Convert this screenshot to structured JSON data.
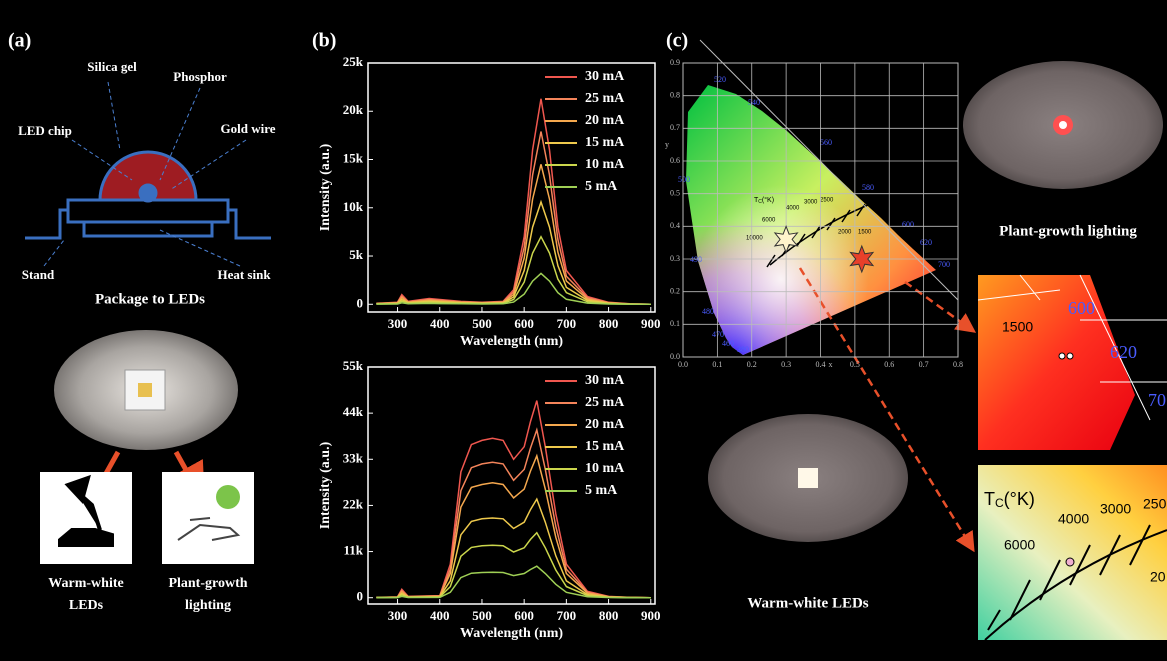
{
  "panel_a": {
    "label": "(a)",
    "parts": [
      "Silica gel",
      "Phosphor",
      "LED chip",
      "Gold wire",
      "Stand",
      "Heat sink"
    ],
    "caption": "Package to LEDs",
    "applications": [
      [
        "Warm-white",
        "LEDs"
      ],
      [
        "Plant-growth",
        "lighting"
      ]
    ]
  },
  "panel_b": {
    "label": "(b)"
  },
  "panel_c": {
    "label": "(c)",
    "photo_captions": [
      "Plant-growth lighting",
      "Warm-white LEDs"
    ],
    "inset_red": [
      "600",
      "1500",
      "620",
      "70"
    ],
    "inset_white": [
      "T",
      "C",
      "(°K)",
      "4000",
      "3000",
      "250",
      "6000",
      "20"
    ]
  },
  "chart_data": [
    {
      "type": "line",
      "ylabel": "Intensity (a.u.)",
      "xlabel": "Wavelength (nm)",
      "x": [
        250,
        300,
        310,
        325,
        375,
        400,
        450,
        500,
        550,
        575,
        600,
        620,
        640,
        660,
        680,
        700,
        750,
        800,
        850,
        900
      ],
      "series": [
        {
          "name": "30 mA",
          "color": "#f0574f",
          "values": [
            100,
            200,
            1000,
            300,
            600,
            500,
            300,
            200,
            300,
            1500,
            7000,
            16000,
            21300,
            16000,
            8000,
            3500,
            800,
            200,
            50,
            0
          ]
        },
        {
          "name": "25 mA",
          "color": "#f4845a",
          "values": [
            80,
            170,
            840,
            250,
            500,
            420,
            250,
            170,
            250,
            1260,
            5900,
            13400,
            17900,
            13400,
            6700,
            2900,
            670,
            170,
            40,
            0
          ]
        },
        {
          "name": "20 mA",
          "color": "#f5a84e",
          "values": [
            70,
            140,
            680,
            200,
            410,
            340,
            200,
            140,
            200,
            1000,
            4800,
            10900,
            14500,
            10900,
            5400,
            2400,
            540,
            140,
            30,
            0
          ]
        },
        {
          "name": "15 mA",
          "color": "#eec94c",
          "values": [
            50,
            100,
            500,
            150,
            300,
            250,
            150,
            100,
            150,
            750,
            3500,
            8000,
            10600,
            8000,
            4000,
            1750,
            400,
            100,
            25,
            0
          ]
        },
        {
          "name": "10 mA",
          "color": "#cbd64c",
          "values": [
            30,
            70,
            330,
            100,
            200,
            170,
            100,
            70,
            100,
            500,
            2300,
            5300,
            7000,
            5300,
            2600,
            1200,
            260,
            70,
            20,
            0
          ]
        },
        {
          "name": "5 mA",
          "color": "#9fcf55",
          "values": [
            15,
            30,
            150,
            45,
            90,
            75,
            45,
            30,
            45,
            230,
            1050,
            2400,
            3200,
            2400,
            1200,
            520,
            120,
            30,
            10,
            0
          ]
        }
      ],
      "xlim": [
        230,
        910
      ],
      "ylim": [
        -800,
        25000
      ],
      "xticks": [
        300,
        400,
        500,
        600,
        700,
        800,
        900
      ],
      "yticks": [
        0,
        {
          "value": 5000,
          "label": "5k"
        },
        {
          "value": 10000,
          "label": "10k"
        },
        {
          "value": 15000,
          "label": "15k"
        },
        {
          "value": 20000,
          "label": "20k"
        },
        {
          "value": 25000,
          "label": "25k"
        }
      ]
    },
    {
      "type": "line",
      "ylabel": "Intensity (a.u.)",
      "xlabel": "Wavelength (nm)",
      "x": [
        250,
        300,
        310,
        325,
        400,
        425,
        450,
        475,
        500,
        525,
        550,
        575,
        600,
        615,
        630,
        650,
        675,
        700,
        750,
        800,
        850,
        900
      ],
      "series": [
        {
          "name": "30 mA",
          "color": "#f0574f",
          "values": [
            100,
            200,
            2000,
            300,
            500,
            8000,
            30000,
            36500,
            37500,
            38000,
            37500,
            33000,
            36000,
            42000,
            47000,
            36000,
            20000,
            8000,
            1500,
            300,
            80,
            0
          ]
        },
        {
          "name": "25 mA",
          "color": "#f4845a",
          "values": [
            85,
            170,
            1700,
            255,
            425,
            6800,
            25500,
            31000,
            31900,
            32300,
            31900,
            28000,
            30600,
            35700,
            40000,
            30600,
            17000,
            6800,
            1280,
            255,
            70,
            0
          ]
        },
        {
          "name": "20 mA",
          "color": "#f5a84e",
          "values": [
            72,
            144,
            1440,
            216,
            360,
            5760,
            21600,
            26300,
            27000,
            27400,
            27000,
            23800,
            25900,
            30200,
            33800,
            25900,
            14400,
            5760,
            1080,
            216,
            58,
            0
          ]
        },
        {
          "name": "15 mA",
          "color": "#eec94c",
          "values": [
            50,
            100,
            1000,
            150,
            250,
            4000,
            15000,
            18200,
            18800,
            19000,
            18800,
            16500,
            18000,
            21000,
            23500,
            18000,
            10000,
            4000,
            750,
            150,
            40,
            0
          ]
        },
        {
          "name": "10 mA",
          "color": "#cbd64c",
          "values": [
            33,
            66,
            660,
            99,
            165,
            2640,
            9900,
            12000,
            12400,
            12500,
            12400,
            10900,
            11900,
            13900,
            15500,
            11900,
            6600,
            2640,
            500,
            99,
            26,
            0
          ]
        },
        {
          "name": "5 mA",
          "color": "#9fcf55",
          "values": [
            16,
            32,
            320,
            48,
            80,
            1280,
            4800,
            5840,
            6000,
            6080,
            6000,
            5280,
            5760,
            6720,
            7520,
            5760,
            3200,
            1280,
            240,
            48,
            13,
            0
          ]
        }
      ],
      "xlim": [
        230,
        910
      ],
      "ylim": [
        -1500,
        55000
      ],
      "xticks": [
        300,
        400,
        500,
        600,
        700,
        800,
        900
      ],
      "yticks": [
        0,
        {
          "value": 11000,
          "label": "11k"
        },
        {
          "value": 22000,
          "label": "22k"
        },
        {
          "value": 33000,
          "label": "33k"
        },
        {
          "value": 44000,
          "label": "44k"
        },
        {
          "value": 55000,
          "label": "55k"
        }
      ]
    },
    {
      "type": "cie",
      "xlabel": "x",
      "ylabel": "y",
      "xlim": [
        0,
        0.8
      ],
      "ylim": [
        0,
        0.9
      ],
      "grid": true,
      "xticks": [
        {
          "value": 0,
          "label": "0.0"
        },
        0.1,
        0.2,
        0.3,
        0.4,
        0.5,
        0.6,
        0.7,
        0.8
      ],
      "yticks": [
        {
          "value": 0,
          "label": "0.0"
        },
        0.1,
        0.2,
        0.3,
        0.4,
        0.5,
        0.6,
        0.7,
        0.8,
        0.9
      ],
      "points": [
        {
          "x": 0.3,
          "y": 0.36,
          "color": "#fff4cc"
        },
        {
          "x": 0.52,
          "y": 0.3,
          "color": "#e8402a"
        }
      ],
      "locus_labels": [
        "520",
        "540",
        "560",
        "580",
        "600",
        "620",
        "700",
        "500",
        "490",
        "480",
        "470",
        "460",
        "380"
      ],
      "cct_labels": [
        "10000",
        "6000",
        "4000",
        "3000",
        "2500",
        "2000",
        "1500"
      ],
      "cct_title": [
        "T",
        "C",
        "(°K)"
      ]
    }
  ]
}
